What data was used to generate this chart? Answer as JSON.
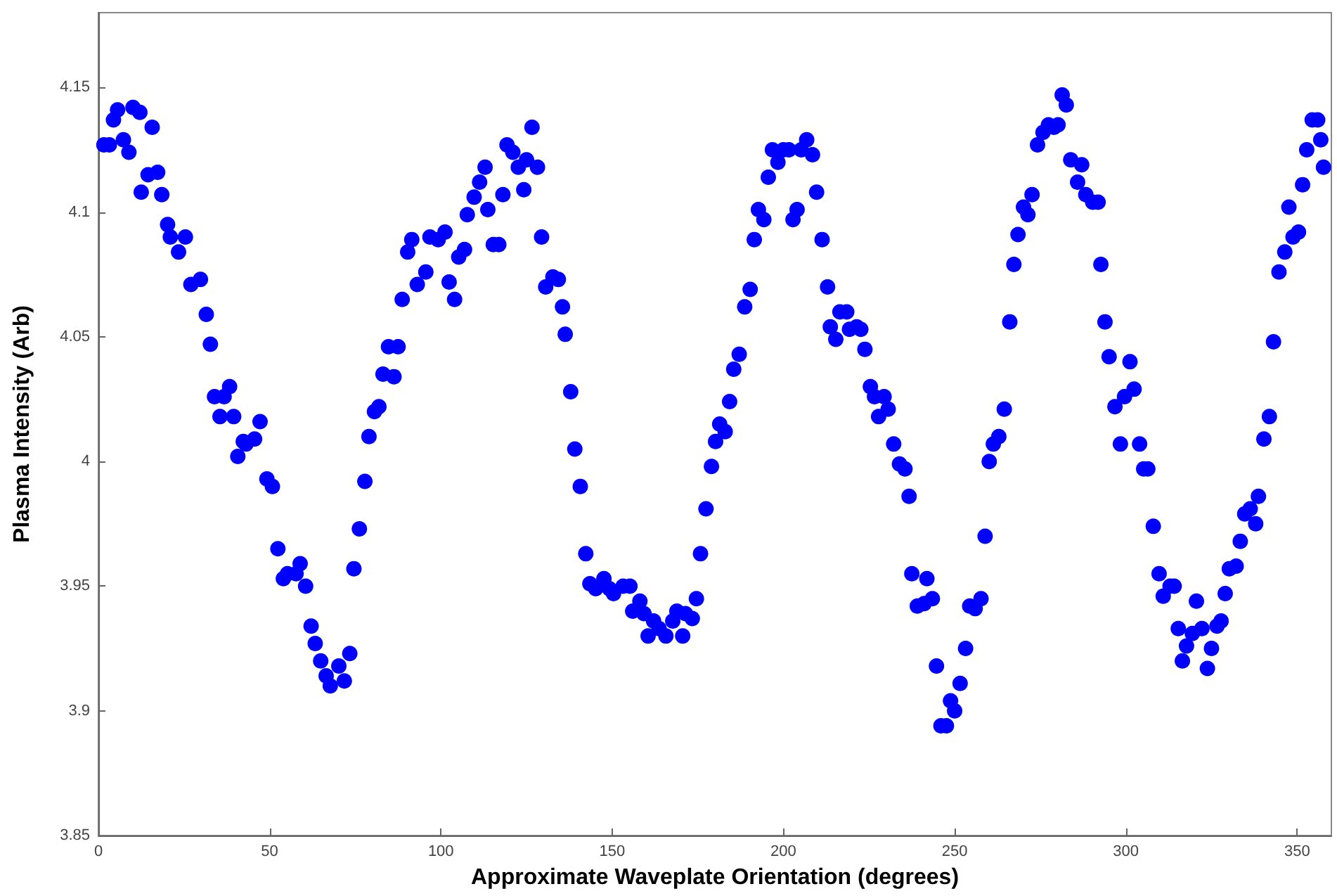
{
  "chart_data": {
    "type": "scatter",
    "xlabel": "Approximate Waveplate Orientation (degrees)",
    "ylabel": "Plasma Intensity (Arb)",
    "xlim": [
      0,
      360
    ],
    "ylim": [
      3.85,
      4.18
    ],
    "xticks": [
      0,
      50,
      100,
      150,
      200,
      250,
      300,
      350
    ],
    "yticks": [
      3.85,
      3.9,
      3.95,
      4,
      4.05,
      4.1,
      4.15
    ],
    "grid": false,
    "marker": "circle",
    "x": [
      1.6,
      3.2,
      4.4,
      5.6,
      7.3,
      8.9,
      10.1,
      12.1,
      12.5,
      14.5,
      15.7,
      17.3,
      18.5,
      20.2,
      21.0,
      23.4,
      25.4,
      27.0,
      29.8,
      31.5,
      32.7,
      33.9,
      35.5,
      36.7,
      38.3,
      39.5,
      40.7,
      42.3,
      43.1,
      45.6,
      47.2,
      49.2,
      50.8,
      52.4,
      54.0,
      55.2,
      57.7,
      58.9,
      60.5,
      62.1,
      63.3,
      64.9,
      66.5,
      67.7,
      70.2,
      71.8,
      73.4,
      74.6,
      76.2,
      77.8,
      79.0,
      80.6,
      81.9,
      83.1,
      86.3,
      84.7,
      87.5,
      88.7,
      90.3,
      91.5,
      93.1,
      95.6,
      96.8,
      99.2,
      101.2,
      102.4,
      104.0,
      105.2,
      106.9,
      107.7,
      109.7,
      111.3,
      112.9,
      113.7,
      115.3,
      116.9,
      118.1,
      119.3,
      121.0,
      122.6,
      124.2,
      125.0,
      126.6,
      128.2,
      129.4,
      130.6,
      132.7,
      134.3,
      135.5,
      136.3,
      137.9,
      139.1,
      140.7,
      142.3,
      143.5,
      145.2,
      147.6,
      149.2,
      150.4,
      153.2,
      155.2,
      156.0,
      158.1,
      159.3,
      160.5,
      162.1,
      163.7,
      165.7,
      167.7,
      168.9,
      170.6,
      171.4,
      173.4,
      174.6,
      175.8,
      177.4,
      179.0,
      180.2,
      181.4,
      183.0,
      184.3,
      185.5,
      187.1,
      188.7,
      190.3,
      191.5,
      192.7,
      194.3,
      195.6,
      196.8,
      198.4,
      200.0,
      201.6,
      202.8,
      204.0,
      205.2,
      206.8,
      208.5,
      209.7,
      211.3,
      212.9,
      213.7,
      215.3,
      216.5,
      218.5,
      219.3,
      221.4,
      222.6,
      223.8,
      225.4,
      226.6,
      227.8,
      229.4,
      230.6,
      232.2,
      233.9,
      235.5,
      236.7,
      237.5,
      239.1,
      241.1,
      241.9,
      243.5,
      244.7,
      246.0,
      247.6,
      248.8,
      250.0,
      251.6,
      253.2,
      254.4,
      256.0,
      257.7,
      258.9,
      260.1,
      261.3,
      262.9,
      264.5,
      266.1,
      267.3,
      268.5,
      270.1,
      271.4,
      272.6,
      274.2,
      275.8,
      277.4,
      279.0,
      280.2,
      281.4,
      282.6,
      283.9,
      285.9,
      287.1,
      288.3,
      290.3,
      291.9,
      292.7,
      293.9,
      295.1,
      296.8,
      298.4,
      299.6,
      301.2,
      302.4,
      304.0,
      305.2,
      306.4,
      308.0,
      309.7,
      310.9,
      312.9,
      314.1,
      315.3,
      316.5,
      317.7,
      319.4,
      320.6,
      322.2,
      323.8,
      325.0,
      326.6,
      327.8,
      329.0,
      330.2,
      332.2,
      333.4,
      334.7,
      336.3,
      337.9,
      338.7,
      340.3,
      341.9,
      343.1,
      344.7,
      346.4,
      347.6,
      348.8,
      350.4,
      351.6,
      352.8,
      354.4,
      356.0,
      356.9,
      357.7
    ],
    "series": [
      {
        "color": "#0000ff",
        "values": [
          4.127,
          4.127,
          4.137,
          4.141,
          4.129,
          4.124,
          4.142,
          4.14,
          4.108,
          4.115,
          4.134,
          4.116,
          4.107,
          4.095,
          4.09,
          4.084,
          4.09,
          4.071,
          4.073,
          4.059,
          4.047,
          4.026,
          4.018,
          4.026,
          4.03,
          4.018,
          4.002,
          4.008,
          4.007,
          4.009,
          4.016,
          3.993,
          3.99,
          3.965,
          3.953,
          3.955,
          3.955,
          3.959,
          3.95,
          3.934,
          3.927,
          3.92,
          3.914,
          3.91,
          3.918,
          3.912,
          3.923,
          3.957,
          3.973,
          3.992,
          4.01,
          4.02,
          4.022,
          4.035,
          4.034,
          4.046,
          4.046,
          4.065,
          4.084,
          4.089,
          4.071,
          4.076,
          4.09,
          4.089,
          4.092,
          4.072,
          4.065,
          4.082,
          4.085,
          4.099,
          4.106,
          4.112,
          4.118,
          4.101,
          4.087,
          4.087,
          4.107,
          4.127,
          4.124,
          4.118,
          4.109,
          4.121,
          4.134,
          4.118,
          4.09,
          4.07,
          4.074,
          4.073,
          4.062,
          4.051,
          4.028,
          4.005,
          3.99,
          3.963,
          3.951,
          3.949,
          3.953,
          3.949,
          3.947,
          3.95,
          3.95,
          3.94,
          3.944,
          3.939,
          3.93,
          3.936,
          3.933,
          3.93,
          3.936,
          3.94,
          3.93,
          3.939,
          3.937,
          3.945,
          3.963,
          3.981,
          3.998,
          4.008,
          4.015,
          4.012,
          4.024,
          4.037,
          4.043,
          4.062,
          4.069,
          4.089,
          4.101,
          4.097,
          4.114,
          4.125,
          4.12,
          4.125,
          4.125,
          4.097,
          4.101,
          4.125,
          4.129,
          4.123,
          4.108,
          4.089,
          4.07,
          4.054,
          4.049,
          4.06,
          4.06,
          4.053,
          4.054,
          4.053,
          4.045,
          4.03,
          4.026,
          4.018,
          4.026,
          4.021,
          4.007,
          3.999,
          3.997,
          3.986,
          3.955,
          3.942,
          3.943,
          3.953,
          3.945,
          3.918,
          3.894,
          3.894,
          3.904,
          3.9,
          3.911,
          3.925,
          3.942,
          3.941,
          3.945,
          3.97,
          4.0,
          4.007,
          4.01,
          4.021,
          4.056,
          4.079,
          4.091,
          4.102,
          4.099,
          4.107,
          4.127,
          4.132,
          4.135,
          4.134,
          4.135,
          4.147,
          4.143,
          4.121,
          4.112,
          4.119,
          4.107,
          4.104,
          4.104,
          4.079,
          4.056,
          4.042,
          4.022,
          4.007,
          4.026,
          4.04,
          4.029,
          4.007,
          3.997,
          3.997,
          3.974,
          3.955,
          3.946,
          3.95,
          3.95,
          3.933,
          3.92,
          3.926,
          3.931,
          3.944,
          3.933,
          3.917,
          3.925,
          3.934,
          3.936,
          3.947,
          3.957,
          3.958,
          3.968,
          3.979,
          3.981,
          3.975,
          3.986,
          4.009,
          4.018,
          4.048,
          4.076,
          4.084,
          4.102,
          4.09,
          4.092,
          4.111,
          4.125,
          4.137,
          4.137,
          4.129,
          4.118
        ]
      }
    ]
  }
}
